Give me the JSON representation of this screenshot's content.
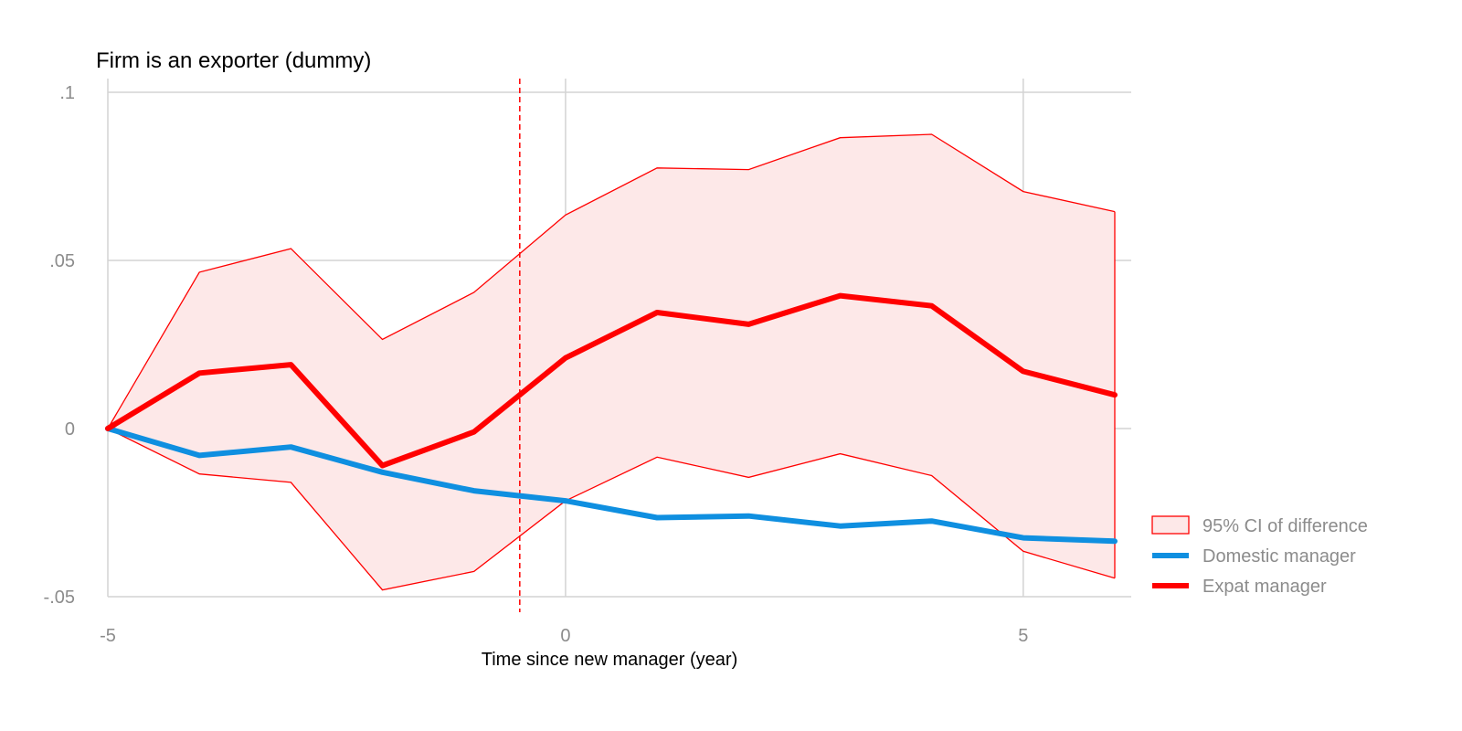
{
  "chart_data": {
    "type": "line",
    "title": "Firm is an exporter (dummy)",
    "xlabel": "Time since new manager (year)",
    "ylabel": "",
    "x": [
      -5,
      -4,
      -3,
      -2,
      -1,
      0,
      1,
      2,
      3,
      4,
      5,
      6
    ],
    "xlim": [
      -5,
      6
    ],
    "ylim": [
      -0.05,
      0.1
    ],
    "xticks": [
      -5,
      0,
      5
    ],
    "xtick_labels": [
      "-5",
      "0",
      "5"
    ],
    "yticks": [
      -0.05,
      0,
      0.05,
      0.1
    ],
    "ytick_labels": [
      "-.05",
      "0",
      ".05",
      ".1"
    ],
    "vline": {
      "x": -0.5,
      "style": "dashed",
      "color": "#ff0000"
    },
    "grid": true,
    "legend_position": "right",
    "ci_band": {
      "name": "95% CI of difference",
      "upper": [
        0,
        0.0465,
        0.0535,
        0.0265,
        0.0405,
        0.0635,
        0.0775,
        0.077,
        0.0865,
        0.0875,
        0.0705,
        0.0645
      ],
      "lower": [
        0,
        -0.0135,
        -0.016,
        -0.048,
        -0.0425,
        -0.0215,
        -0.0085,
        -0.0145,
        -0.0075,
        -0.014,
        -0.0365,
        -0.0445
      ],
      "fill": "#fde8e8",
      "stroke": "#ff0000"
    },
    "series": [
      {
        "name": "Domestic manager",
        "color": "#0f8fe0",
        "values": [
          0,
          -0.008,
          -0.0055,
          -0.013,
          -0.0185,
          -0.0215,
          -0.0265,
          -0.026,
          -0.029,
          -0.0275,
          -0.0325,
          -0.0335
        ]
      },
      {
        "name": "Expat manager",
        "color": "#ff0000",
        "values": [
          0,
          0.0165,
          0.019,
          -0.011,
          -0.001,
          0.021,
          0.0345,
          0.031,
          0.0395,
          0.0365,
          0.017,
          0.01
        ]
      }
    ]
  }
}
